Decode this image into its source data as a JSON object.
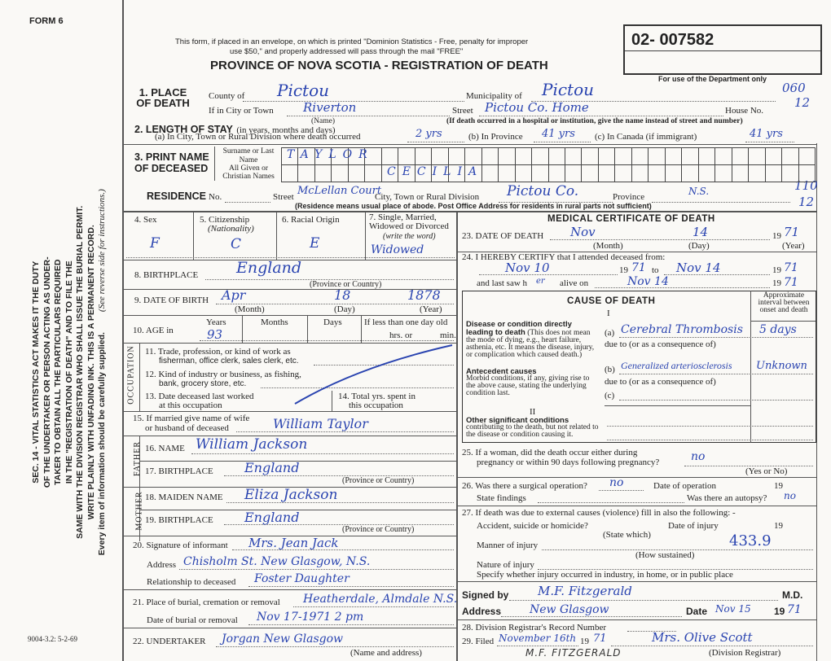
{
  "margin": {
    "form_label": "FORM 6",
    "statute_lines": [
      "SEC. 14 - VITAL STATISTICS ACT MAKES IT THE DUTY",
      "OF THE UNDERTAKER OR PERSON ACTING AS UNDER-",
      "TAKER TO OBTAIN ALL THE PARTICULARS REQUIRED",
      "IN THE \"REGISTRATION OF DEATH\" AND TO FILE THE",
      "SAME WITH THE DIVISION REGISTRAR WHO SHALL ISSUE THE BURIAL PERMIT.",
      "WRITE PLAINLY WITH UNFADING INK. THIS IS A PERMANENT RECORD.",
      "Every item of information should be carefully supplied."
    ],
    "see_reverse": "(See reverse side for instructions.)",
    "form_code": "9004-3.2: 5-2-69"
  },
  "header": {
    "notice_line1": "This form, if placed in an envelope, on which is printed \"Dominion Statistics - Free, penalty for improper",
    "notice_line2": "use $50,\" and properly addressed will pass through the mail \"FREE\"",
    "title": "PROVINCE OF NOVA SCOTIA - REGISTRATION OF DEATH",
    "registration_number": "02- 007582",
    "dept_only": "For use of the Department only",
    "dept_codes": [
      "060",
      "12",
      "110",
      "12"
    ]
  },
  "place_of_death": {
    "label": "1. PLACE OF DEATH",
    "county_label": "County of",
    "county": "Pictou",
    "municipality_label": "Municipality of",
    "municipality": "Pictou",
    "city_label": "If in City or Town",
    "city": "Riverton",
    "name_note": "(Name)",
    "street_label": "Street",
    "street": "Pictou Co. Home",
    "house_label": "House No.",
    "street_note": "(If death occurred in a hospital or institution, give the name instead of street and number)"
  },
  "length_of_stay": {
    "label": "2. LENGTH OF STAY",
    "label_note": "(in years, months and days)",
    "a_label": "(a) In City, Town or Rural Division where death occurred",
    "a_value": "2 yrs",
    "b_label": "(b) In Province",
    "b_value": "41 yrs",
    "c_label": "(c) In Canada (if immigrant)",
    "c_value": "41 yrs"
  },
  "name": {
    "label": "3. PRINT NAME OF DECEASED",
    "surname_label": "Surname or Last Name",
    "surname": "TAYLOR",
    "given_label": "All Given or Christian Names",
    "given": "CECILIA"
  },
  "residence": {
    "label": "RESIDENCE",
    "no_label": "No.",
    "street_label": "Street",
    "street": "McLellan Court",
    "city_label": "City, Town or Rural Division",
    "city": "Pictou Co.",
    "province_label": "Province",
    "province": "N.S.",
    "note": "(Residence means usual place of abode. Post Office Address for residents in rural parts not sufficient)"
  },
  "personal": {
    "sex_label": "4. Sex",
    "sex": "F",
    "citizenship_label": "5. Citizenship",
    "citizenship_note": "(Nationality)",
    "citizenship": "C",
    "racial_label": "6. Racial Origin",
    "racial": "E",
    "marital_label": "7. Single, Married, Widowed or Divorced",
    "marital_note": "(write the word)",
    "marital": "Widowed",
    "birthplace_label": "8. BIRTHPLACE",
    "birthplace": "England",
    "province_note": "(Province or Country)",
    "dob_label": "9. DATE OF BIRTH",
    "dob_month": "Apr",
    "dob_day": "18",
    "dob_year": "1878",
    "month_note": "(Month)",
    "day_note": "(Day)",
    "year_note": "(Year)",
    "age_label": "10. AGE in",
    "years_label": "Years",
    "years": "93",
    "months_label": "Months",
    "days_label": "Days",
    "less_day_label": "If less than one day old",
    "hrs_label": "hrs. or",
    "min_label": "min."
  },
  "occupation": {
    "side_label": "OCCUPATION",
    "q11_a": "11. Trade, profession, or kind of work as",
    "q11_b": "fisherman, office clerk, sales clerk, etc.",
    "q12_a": "12. Kind of industry or business, as fishing,",
    "q12_b": "bank, grocery store, etc.",
    "q13_a": "13. Date deceased last worked",
    "q13_b": "at this occupation",
    "q14_a": "14. Total yrs. spent in",
    "q14_b": "this occupation"
  },
  "family": {
    "spouse_label_a": "15. If married give name of wife",
    "spouse_label_b": "or husband of deceased",
    "spouse": "William Taylor",
    "father_side": "FATHER",
    "father_name_label": "16. NAME",
    "father_name": "William Jackson",
    "father_birthplace_label": "17. BIRTHPLACE",
    "father_birthplace": "England",
    "mother_side": "MOTHER",
    "mother_name_label": "18. MAIDEN NAME",
    "mother_name": "Eliza Jackson",
    "mother_birthplace_label": "19. BIRTHPLACE",
    "mother_birthplace": "England",
    "province_note": "(Province or Country)"
  },
  "informant": {
    "signature_label": "20. Signature of informant",
    "signature": "Mrs. Jean Jack",
    "address_label": "Address",
    "address": "Chisholm St. New Glasgow, N.S.",
    "relationship_label": "Relationship to deceased",
    "relationship": "Foster Daughter"
  },
  "burial": {
    "place_label": "21. Place of burial, cremation or removal",
    "place": "Heatherdale, Almdale N.S.",
    "date_label": "Date of burial or removal",
    "date": "Nov 17-1971 2 pm",
    "undertaker_label": "22. UNDERTAKER",
    "undertaker": "Jorgan New Glasgow",
    "undertaker_note": "(Name and address)"
  },
  "medical": {
    "title": "MEDICAL CERTIFICATE OF DEATH",
    "dod_label": "23. DATE OF DEATH",
    "dod_month": "Nov",
    "dod_day": "14",
    "dod_year_prefix": "19",
    "dod_year": "71",
    "certify_label": "24. I HEREBY CERTIFY that I attended deceased from:",
    "from": "Nov 10",
    "from_year": "71",
    "to_label": "to",
    "to": "Nov 14",
    "to_year": "71",
    "last_saw_label": "and last saw h",
    "last_saw_pronoun": "er",
    "alive_on_label": "alive on",
    "last_saw": "Nov 14",
    "last_saw_year": "71",
    "year_prefix": "19"
  },
  "cause": {
    "title": "CAUSE OF DEATH",
    "interval_header": "Approximate interval between onset and death",
    "part1": "I",
    "direct_label": "Disease or condition directly leading to death",
    "direct_note": "(This does not mean the mode of dying, e.g., heart failure, asthenia, etc. It means the disease, injury, or complication which caused death.)",
    "a_label": "(a)",
    "a_value": "Cerebral Thrombosis",
    "a_interval": "5 days",
    "due_to": "due to (or as a consequence of)",
    "antecedent_label": "Antecedent causes",
    "antecedent_note": "Morbid conditions, if any, giving rise to the above cause, stating the underlying condition last.",
    "b_label": "(b)",
    "b_value": "Generalized arteriosclerosis",
    "b_interval": "Unknown",
    "c_label": "(c)",
    "part2": "II",
    "other_label": "Other significant conditions",
    "other_note": "contributing to the death, but not related to the disease or condition causing it."
  },
  "questions": {
    "q25_a": "25. If a woman, did the death occur either during",
    "q25_b": "pregnancy or within 90 days following pregnancy?",
    "q25": "no",
    "yes_no_note": "(Yes or No)",
    "q26_label": "26. Was there a surgical operation?",
    "q26": "no",
    "op_date_label": "Date of operation",
    "year_prefix": "19",
    "findings_label": "State findings",
    "autopsy_label": "Was there an autopsy?",
    "autopsy": "no",
    "q27_label": "27. If death was due to external causes (violence) fill in also the following: -",
    "accident_label": "Accident, suicide or homicide?",
    "state_which": "(State which)",
    "injury_date_label": "Date of injury",
    "manner_label": "Manner of injury",
    "how_sustained": "(How sustained)",
    "code": "433.9",
    "nature_label": "Nature of injury",
    "where_label": "Specify whether injury occurred in industry, in home, or in public place"
  },
  "signature": {
    "signed_label": "Signed by",
    "signed": "M.F. Fitzgerald",
    "md": "M.D.",
    "address_label": "Address",
    "address": "New Glasgow",
    "date_label": "Date",
    "date": "Nov 15",
    "year_prefix": "19",
    "year": "71",
    "record_label": "28. Division Registrar's Record Number",
    "filed_label": "29. Filed",
    "filed": "November 16th",
    "filed_year": "71",
    "registrar": "Mrs. Olive Scott",
    "registrar_note": "(Division Registrar)",
    "printed_name": "M.F. FITZGERALD"
  }
}
